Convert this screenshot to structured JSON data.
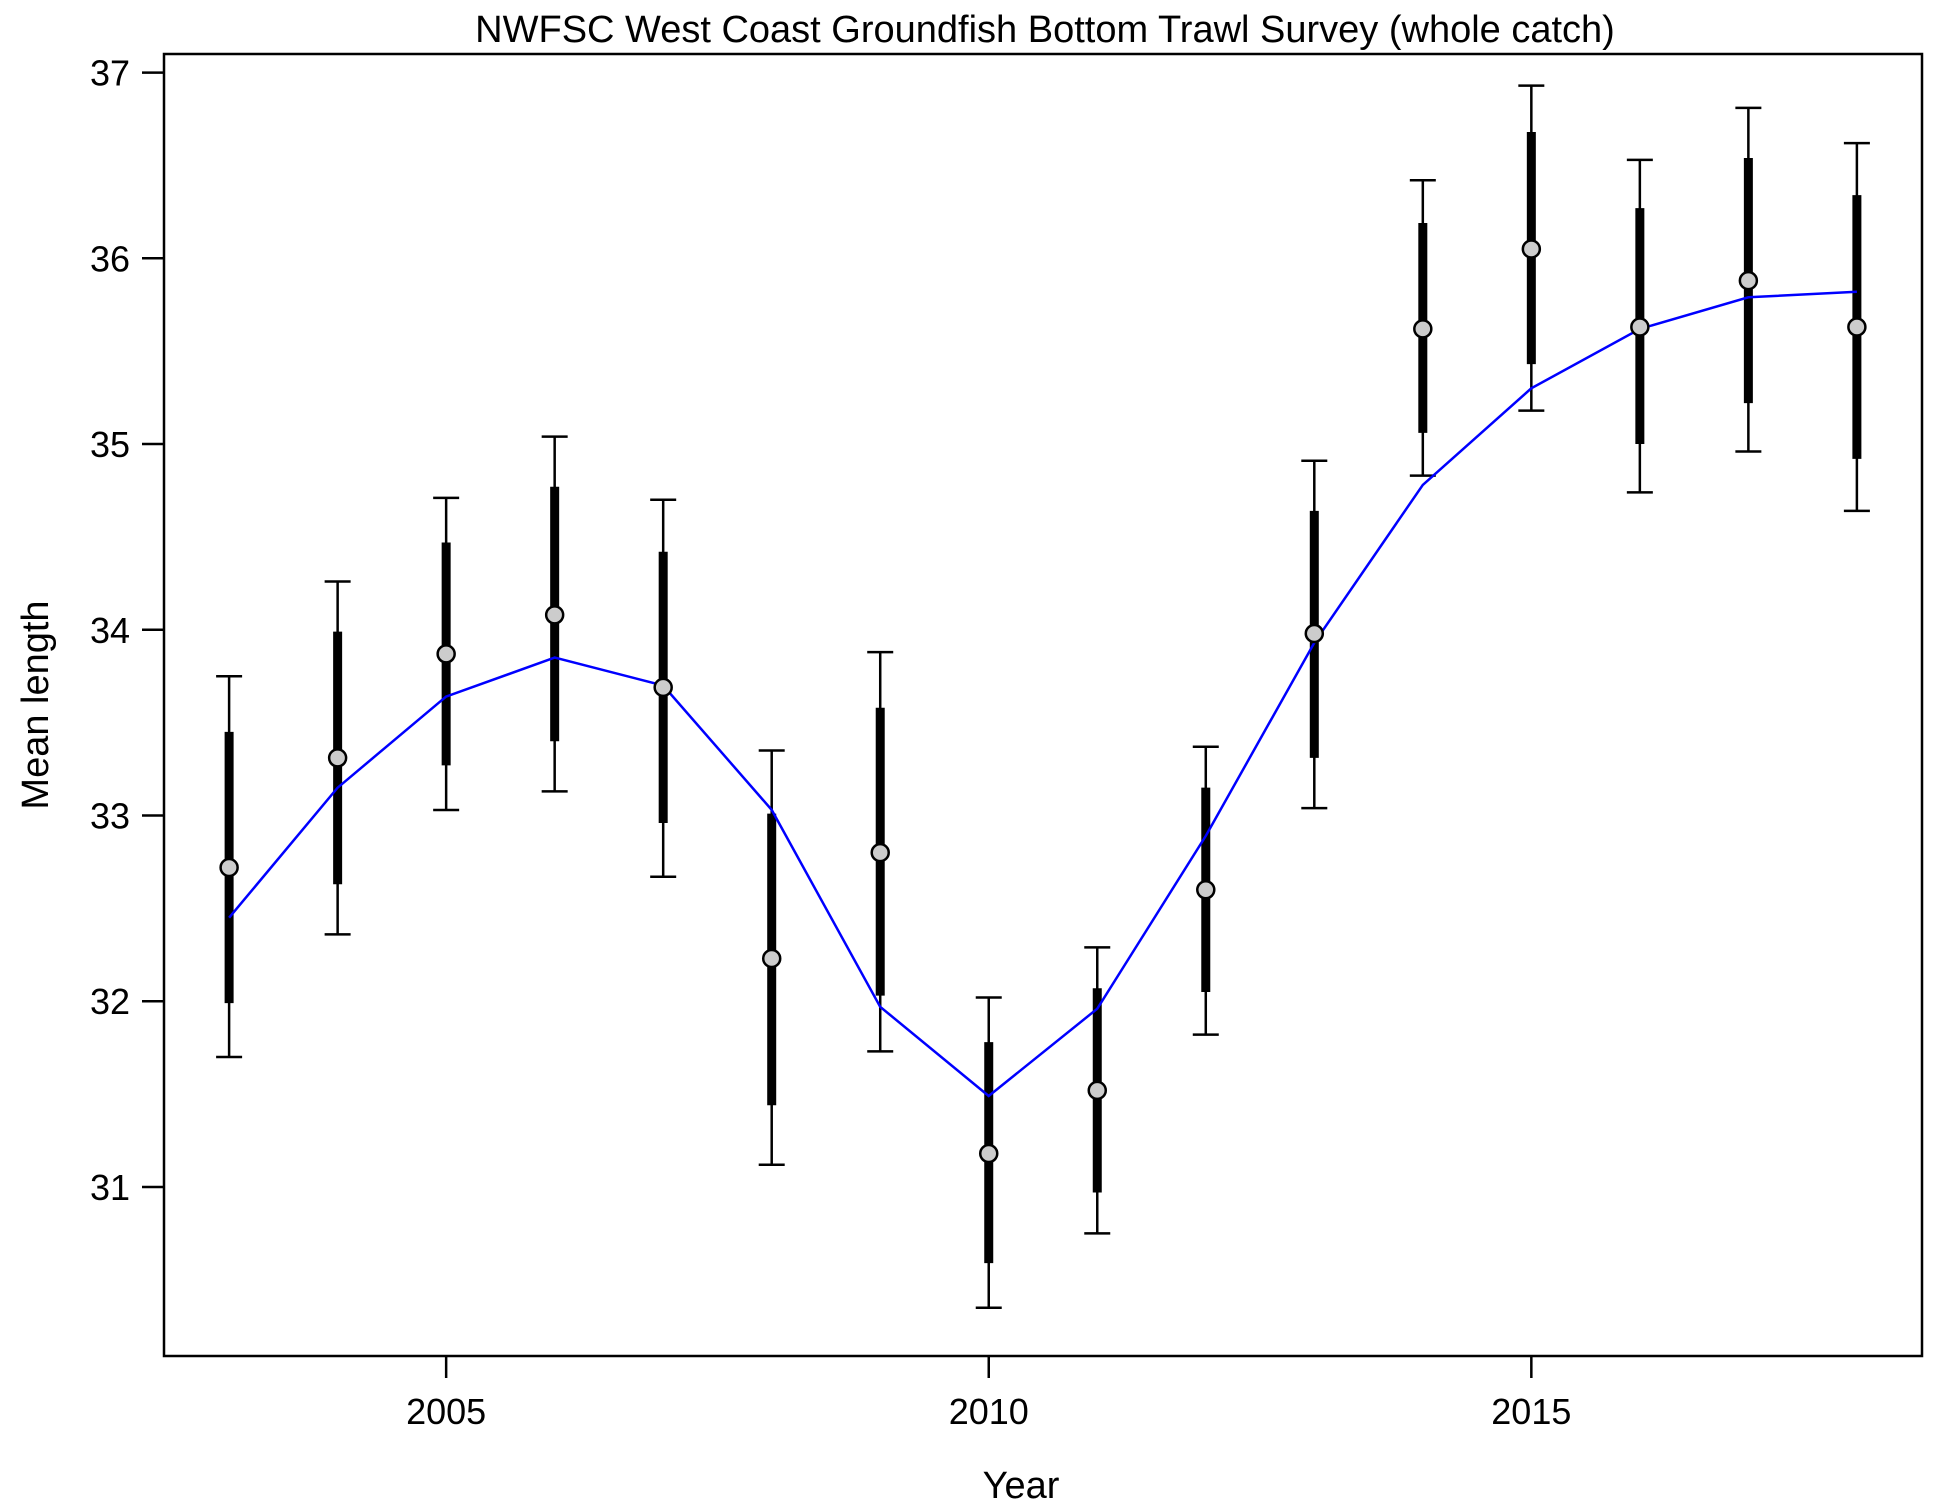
{
  "chart_data": {
    "type": "line",
    "title": "NWFSC West Coast Groundfish Bottom Trawl Survey (whole catch)",
    "xlabel": "Year",
    "ylabel": "Mean length",
    "xlim": [
      2002.4,
      2018.6
    ],
    "ylim": [
      30.09,
      37.1
    ],
    "x_ticks": [
      2005,
      2010,
      2015
    ],
    "y_ticks": [
      31,
      32,
      33,
      34,
      35,
      36,
      37
    ],
    "grid": false,
    "colors": {
      "expected_line": "#0000ff",
      "observed_point_fill": "#cccccc",
      "interval": "#000000"
    },
    "observed": {
      "x": [
        2003,
        2004,
        2005,
        2006,
        2007,
        2008,
        2009,
        2010,
        2011,
        2012,
        2013,
        2014,
        2015,
        2016,
        2017,
        2018
      ],
      "y": [
        32.72,
        33.31,
        33.87,
        34.08,
        33.69,
        32.23,
        32.8,
        31.18,
        31.52,
        32.6,
        33.98,
        35.62,
        36.05,
        35.63,
        35.88,
        35.63
      ],
      "inner_low": [
        31.99,
        32.63,
        33.27,
        33.4,
        32.96,
        31.44,
        32.03,
        30.59,
        30.97,
        32.05,
        33.31,
        35.06,
        35.43,
        35.0,
        35.22,
        34.92
      ],
      "inner_high": [
        33.45,
        33.99,
        34.47,
        34.77,
        34.42,
        33.01,
        33.58,
        31.78,
        32.07,
        33.15,
        34.64,
        36.19,
        36.68,
        36.27,
        36.54,
        36.34
      ],
      "outer_low": [
        31.7,
        32.36,
        33.03,
        33.13,
        32.67,
        31.12,
        31.73,
        30.35,
        30.75,
        31.82,
        33.04,
        34.83,
        35.18,
        34.74,
        34.96,
        34.64
      ],
      "outer_high": [
        33.75,
        34.26,
        34.71,
        35.04,
        34.7,
        33.35,
        33.88,
        32.02,
        32.29,
        33.37,
        34.91,
        36.42,
        36.93,
        36.53,
        36.81,
        36.62
      ]
    },
    "expected": {
      "x": [
        2003,
        2004,
        2005,
        2006,
        2007,
        2008,
        2009,
        2010,
        2011,
        2012,
        2013,
        2014,
        2015,
        2016,
        2017,
        2018
      ],
      "y": [
        32.45,
        33.15,
        33.64,
        33.85,
        33.7,
        33.03,
        31.97,
        31.49,
        31.96,
        32.89,
        33.93,
        34.78,
        35.3,
        35.62,
        35.79,
        35.82
      ]
    }
  }
}
